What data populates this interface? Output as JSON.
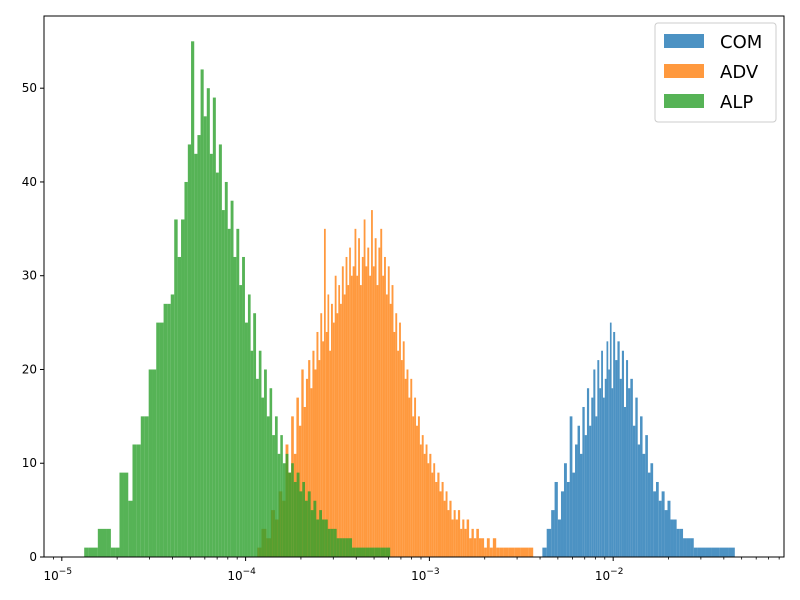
{
  "chart_data": {
    "type": "bar",
    "subtype": "overlaid-histogram",
    "title": "",
    "xlabel": "",
    "ylabel": "",
    "xscale": "log",
    "xlim": [
      8e-06,
      0.085
    ],
    "ylim": [
      0,
      57.7
    ],
    "x_ticks": [
      {
        "value": 1e-05,
        "base": "10",
        "exp": "−5"
      },
      {
        "value": 0.0001,
        "base": "10",
        "exp": "−4"
      },
      {
        "value": 0.001,
        "base": "10",
        "exp": "−3"
      },
      {
        "value": 0.01,
        "base": "10",
        "exp": "−2"
      }
    ],
    "y_ticks": [
      0,
      10,
      20,
      30,
      40,
      50
    ],
    "grid": false,
    "legend_position": "top-right",
    "series": [
      {
        "name": "COM",
        "color": "#1f77b4",
        "bins": [
          [
            0.0042,
            1
          ],
          [
            0.0045,
            3
          ],
          [
            0.0047,
            5
          ],
          [
            0.0049,
            8
          ],
          [
            0.0051,
            4
          ],
          [
            0.0053,
            7
          ],
          [
            0.0055,
            10
          ],
          [
            0.0057,
            8
          ],
          [
            0.0059,
            15
          ],
          [
            0.0061,
            9
          ],
          [
            0.0063,
            12
          ],
          [
            0.0065,
            14
          ],
          [
            0.0067,
            11
          ],
          [
            0.0069,
            16
          ],
          [
            0.0071,
            13
          ],
          [
            0.0073,
            18
          ],
          [
            0.0075,
            14
          ],
          [
            0.0077,
            17
          ],
          [
            0.0079,
            20
          ],
          [
            0.0081,
            15
          ],
          [
            0.0083,
            21
          ],
          [
            0.0085,
            18
          ],
          [
            0.0087,
            22
          ],
          [
            0.0089,
            17
          ],
          [
            0.0091,
            19
          ],
          [
            0.0093,
            23
          ],
          [
            0.0095,
            20
          ],
          [
            0.0097,
            25
          ],
          [
            0.0099,
            18
          ],
          [
            0.0101,
            24
          ],
          [
            0.0104,
            21
          ],
          [
            0.0107,
            23
          ],
          [
            0.011,
            19
          ],
          [
            0.0113,
            22
          ],
          [
            0.0116,
            16
          ],
          [
            0.0119,
            21
          ],
          [
            0.0122,
            18
          ],
          [
            0.0126,
            19
          ],
          [
            0.013,
            14
          ],
          [
            0.0134,
            17
          ],
          [
            0.0138,
            12
          ],
          [
            0.0142,
            15
          ],
          [
            0.0147,
            11
          ],
          [
            0.0152,
            13
          ],
          [
            0.0157,
            9
          ],
          [
            0.0162,
            10
          ],
          [
            0.0168,
            7
          ],
          [
            0.0174,
            8
          ],
          [
            0.018,
            6
          ],
          [
            0.0187,
            7
          ],
          [
            0.0194,
            5
          ],
          [
            0.0201,
            6
          ],
          [
            0.0209,
            4
          ],
          [
            0.0217,
            4
          ],
          [
            0.0226,
            3
          ],
          [
            0.0235,
            3
          ],
          [
            0.0245,
            2
          ],
          [
            0.0256,
            2
          ],
          [
            0.0268,
            2
          ],
          [
            0.0281,
            1
          ],
          [
            0.0295,
            1
          ],
          [
            0.031,
            1
          ],
          [
            0.033,
            1
          ],
          [
            0.036,
            1
          ],
          [
            0.04,
            1
          ],
          [
            0.045,
            1
          ]
        ]
      },
      {
        "name": "ADV",
        "color": "#ff7f0e",
        "bins": [
          [
            0.000118,
            1
          ],
          [
            0.000126,
            3
          ],
          [
            0.000134,
            2
          ],
          [
            0.000141,
            5
          ],
          [
            0.000148,
            4
          ],
          [
            0.000155,
            7
          ],
          [
            0.000162,
            6
          ],
          [
            0.000168,
            12
          ],
          [
            0.000174,
            9
          ],
          [
            0.00018,
            15
          ],
          [
            0.000186,
            11
          ],
          [
            0.000192,
            17
          ],
          [
            0.000198,
            14
          ],
          [
            0.000204,
            20
          ],
          [
            0.00021,
            16
          ],
          [
            0.000216,
            19
          ],
          [
            0.000222,
            21
          ],
          [
            0.000228,
            18
          ],
          [
            0.000234,
            22
          ],
          [
            0.00024,
            20
          ],
          [
            0.000246,
            24
          ],
          [
            0.000252,
            21
          ],
          [
            0.000258,
            26
          ],
          [
            0.000264,
            23
          ],
          [
            0.00027,
            35
          ],
          [
            0.000276,
            24
          ],
          [
            0.000282,
            28
          ],
          [
            0.000288,
            22
          ],
          [
            0.000295,
            27
          ],
          [
            0.000302,
            25
          ],
          [
            0.000309,
            30
          ],
          [
            0.000316,
            26
          ],
          [
            0.000323,
            29
          ],
          [
            0.00033,
            27
          ],
          [
            0.000338,
            31
          ],
          [
            0.000346,
            28
          ],
          [
            0.000354,
            32
          ],
          [
            0.000362,
            29
          ],
          [
            0.00037,
            33
          ],
          [
            0.000378,
            30
          ],
          [
            0.000387,
            31
          ],
          [
            0.000396,
            35
          ],
          [
            0.000405,
            30
          ],
          [
            0.000414,
            34
          ],
          [
            0.000424,
            29
          ],
          [
            0.000434,
            32
          ],
          [
            0.000444,
            36
          ],
          [
            0.000454,
            31
          ],
          [
            0.000465,
            33
          ],
          [
            0.000476,
            30
          ],
          [
            0.000487,
            37
          ],
          [
            0.000498,
            31
          ],
          [
            0.00051,
            34
          ],
          [
            0.000522,
            29
          ],
          [
            0.000534,
            33
          ],
          [
            0.000547,
            35
          ],
          [
            0.00056,
            30
          ],
          [
            0.000573,
            32
          ],
          [
            0.000587,
            28
          ],
          [
            0.000601,
            31
          ],
          [
            0.000615,
            27
          ],
          [
            0.00063,
            29
          ],
          [
            0.000645,
            24
          ],
          [
            0.00066,
            26
          ],
          [
            0.000676,
            22
          ],
          [
            0.000692,
            25
          ],
          [
            0.000708,
            21
          ],
          [
            0.000725,
            23
          ],
          [
            0.000742,
            19
          ],
          [
            0.00076,
            20
          ],
          [
            0.000778,
            17
          ],
          [
            0.000797,
            19
          ],
          [
            0.000816,
            15
          ],
          [
            0.000836,
            17
          ],
          [
            0.000856,
            14
          ],
          [
            0.000877,
            15
          ],
          [
            0.000898,
            12
          ],
          [
            0.00092,
            13
          ],
          [
            0.000942,
            11
          ],
          [
            0.000965,
            12
          ],
          [
            0.000988,
            10
          ],
          [
            0.00101,
            11
          ],
          [
            0.00104,
            9
          ],
          [
            0.00106,
            10
          ],
          [
            0.00109,
            8
          ],
          [
            0.00112,
            9
          ],
          [
            0.00115,
            7
          ],
          [
            0.00118,
            8
          ],
          [
            0.00121,
            6
          ],
          [
            0.00124,
            7
          ],
          [
            0.00127,
            5
          ],
          [
            0.0013,
            6
          ],
          [
            0.00134,
            4
          ],
          [
            0.00137,
            5
          ],
          [
            0.00141,
            4
          ],
          [
            0.00145,
            5
          ],
          [
            0.00149,
            3
          ],
          [
            0.00153,
            4
          ],
          [
            0.00157,
            3
          ],
          [
            0.00162,
            4
          ],
          [
            0.00167,
            2
          ],
          [
            0.00172,
            3
          ],
          [
            0.00177,
            2
          ],
          [
            0.00183,
            3
          ],
          [
            0.00189,
            2
          ],
          [
            0.00195,
            2
          ],
          [
            0.00202,
            1
          ],
          [
            0.00209,
            2
          ],
          [
            0.00217,
            1
          ],
          [
            0.00226,
            2
          ],
          [
            0.00236,
            1
          ],
          [
            0.00247,
            1
          ],
          [
            0.0026,
            1
          ],
          [
            0.0028,
            1
          ],
          [
            0.003,
            1
          ],
          [
            0.0033,
            1
          ],
          [
            0.0036,
            1
          ]
        ]
      },
      {
        "name": "ALP",
        "color": "#2ca02c",
        "bins": [
          [
            1.35e-05,
            1
          ],
          [
            1.45e-05,
            1
          ],
          [
            1.7e-05,
            3
          ],
          [
            1.8e-05,
            3
          ],
          [
            1.9e-05,
            1
          ],
          [
            2e-05,
            1
          ],
          [
            2.12e-05,
            9
          ],
          [
            2.24e-05,
            9
          ],
          [
            2.36e-05,
            6
          ],
          [
            2.49e-05,
            12
          ],
          [
            2.62e-05,
            12
          ],
          [
            2.76e-05,
            15
          ],
          [
            2.9e-05,
            15
          ],
          [
            3.04e-05,
            20
          ],
          [
            3.19e-05,
            20
          ],
          [
            3.34e-05,
            25
          ],
          [
            3.5e-05,
            25
          ],
          [
            3.66e-05,
            27
          ],
          [
            3.83e-05,
            27
          ],
          [
            4e-05,
            28
          ],
          [
            4.18e-05,
            36
          ],
          [
            4.36e-05,
            32
          ],
          [
            4.55e-05,
            36
          ],
          [
            4.75e-05,
            40
          ],
          [
            4.95e-05,
            44
          ],
          [
            5.15e-05,
            55
          ],
          [
            5.36e-05,
            43
          ],
          [
            5.58e-05,
            45
          ],
          [
            5.8e-05,
            52
          ],
          [
            6.03e-05,
            47
          ],
          [
            6.27e-05,
            50
          ],
          [
            6.51e-05,
            43
          ],
          [
            6.76e-05,
            49
          ],
          [
            7.02e-05,
            41
          ],
          [
            7.29e-05,
            44
          ],
          [
            7.57e-05,
            37
          ],
          [
            7.85e-05,
            40
          ],
          [
            8.14e-05,
            35
          ],
          [
            8.44e-05,
            38
          ],
          [
            8.75e-05,
            32
          ],
          [
            9.07e-05,
            35
          ],
          [
            9.4e-05,
            29
          ],
          [
            9.74e-05,
            32
          ],
          [
            0.000101,
            25
          ],
          [
            0.000105,
            28
          ],
          [
            0.000108,
            22
          ],
          [
            0.000112,
            26
          ],
          [
            0.000116,
            19
          ],
          [
            0.00012,
            22
          ],
          [
            0.000124,
            17
          ],
          [
            0.000128,
            20
          ],
          [
            0.000133,
            15
          ],
          [
            0.000137,
            18
          ],
          [
            0.000142,
            13
          ],
          [
            0.000147,
            15
          ],
          [
            0.000152,
            11
          ],
          [
            0.000157,
            13
          ],
          [
            0.000162,
            10
          ],
          [
            0.000168,
            11
          ],
          [
            0.000174,
            9
          ],
          [
            0.00018,
            10
          ],
          [
            0.000186,
            8
          ],
          [
            0.000193,
            9
          ],
          [
            0.0002,
            7
          ],
          [
            0.000207,
            8
          ],
          [
            0.000214,
            6
          ],
          [
            0.000222,
            7
          ],
          [
            0.00023,
            5
          ],
          [
            0.000238,
            6
          ],
          [
            0.000247,
            4
          ],
          [
            0.000256,
            5
          ],
          [
            0.000265,
            4
          ],
          [
            0.000275,
            4
          ],
          [
            0.000285,
            3
          ],
          [
            0.000296,
            3
          ],
          [
            0.000307,
            3
          ],
          [
            0.000319,
            2
          ],
          [
            0.000331,
            2
          ],
          [
            0.000344,
            2
          ],
          [
            0.000358,
            2
          ],
          [
            0.000372,
            2
          ],
          [
            0.000387,
            1
          ],
          [
            0.000403,
            1
          ],
          [
            0.00042,
            1
          ],
          [
            0.00044,
            1
          ],
          [
            0.00046,
            1
          ],
          [
            0.00049,
            1
          ],
          [
            0.00052,
            1
          ],
          [
            0.00056,
            1
          ],
          [
            0.0006,
            1
          ]
        ]
      }
    ]
  }
}
